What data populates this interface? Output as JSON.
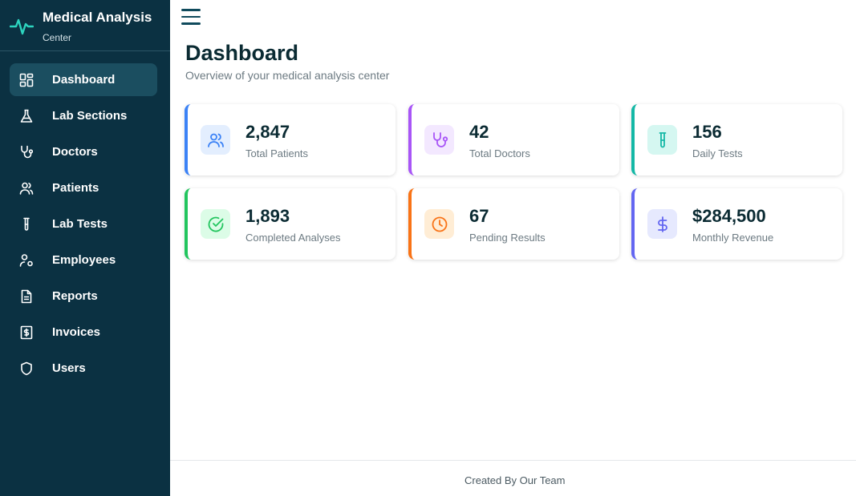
{
  "brand": {
    "title": "Medical Analysis",
    "subtitle": "Center",
    "icon": "activity-icon"
  },
  "sidebar": {
    "items": [
      {
        "label": "Dashboard",
        "icon": "dashboard-icon",
        "active": true
      },
      {
        "label": "Lab Sections",
        "icon": "flask-icon"
      },
      {
        "label": "Doctors",
        "icon": "stethoscope-icon"
      },
      {
        "label": "Patients",
        "icon": "users-icon"
      },
      {
        "label": "Lab Tests",
        "icon": "test-tube-icon"
      },
      {
        "label": "Employees",
        "icon": "user-cog-icon"
      },
      {
        "label": "Reports",
        "icon": "file-text-icon"
      },
      {
        "label": "Invoices",
        "icon": "receipt-icon"
      },
      {
        "label": "Users",
        "icon": "shield-icon"
      }
    ]
  },
  "header": {
    "title": "Dashboard",
    "subtitle": "Overview of your medical analysis center"
  },
  "stats": [
    {
      "value": "2,847",
      "label": "Total Patients",
      "icon": "users-icon",
      "accent": "#3b82f6",
      "icon_bg": "#e3eefe"
    },
    {
      "value": "42",
      "label": "Total Doctors",
      "icon": "stethoscope-icon",
      "accent": "#a855f7",
      "icon_bg": "#f3e8ff"
    },
    {
      "value": "156",
      "label": "Daily Tests",
      "icon": "test-tube-icon",
      "accent": "#14b8a6",
      "icon_bg": "#d5f7f1"
    },
    {
      "value": "1,893",
      "label": "Completed Analyses",
      "icon": "check-circle-icon",
      "accent": "#22c55e",
      "icon_bg": "#dcfce7"
    },
    {
      "value": "67",
      "label": "Pending Results",
      "icon": "clock-icon",
      "accent": "#f97316",
      "icon_bg": "#ffedd5"
    },
    {
      "value": "$284,500",
      "label": "Monthly Revenue",
      "icon": "dollar-icon",
      "accent": "#6366f1",
      "icon_bg": "#e6e9fe"
    }
  ],
  "footer": {
    "text": "Created By Our Team"
  }
}
